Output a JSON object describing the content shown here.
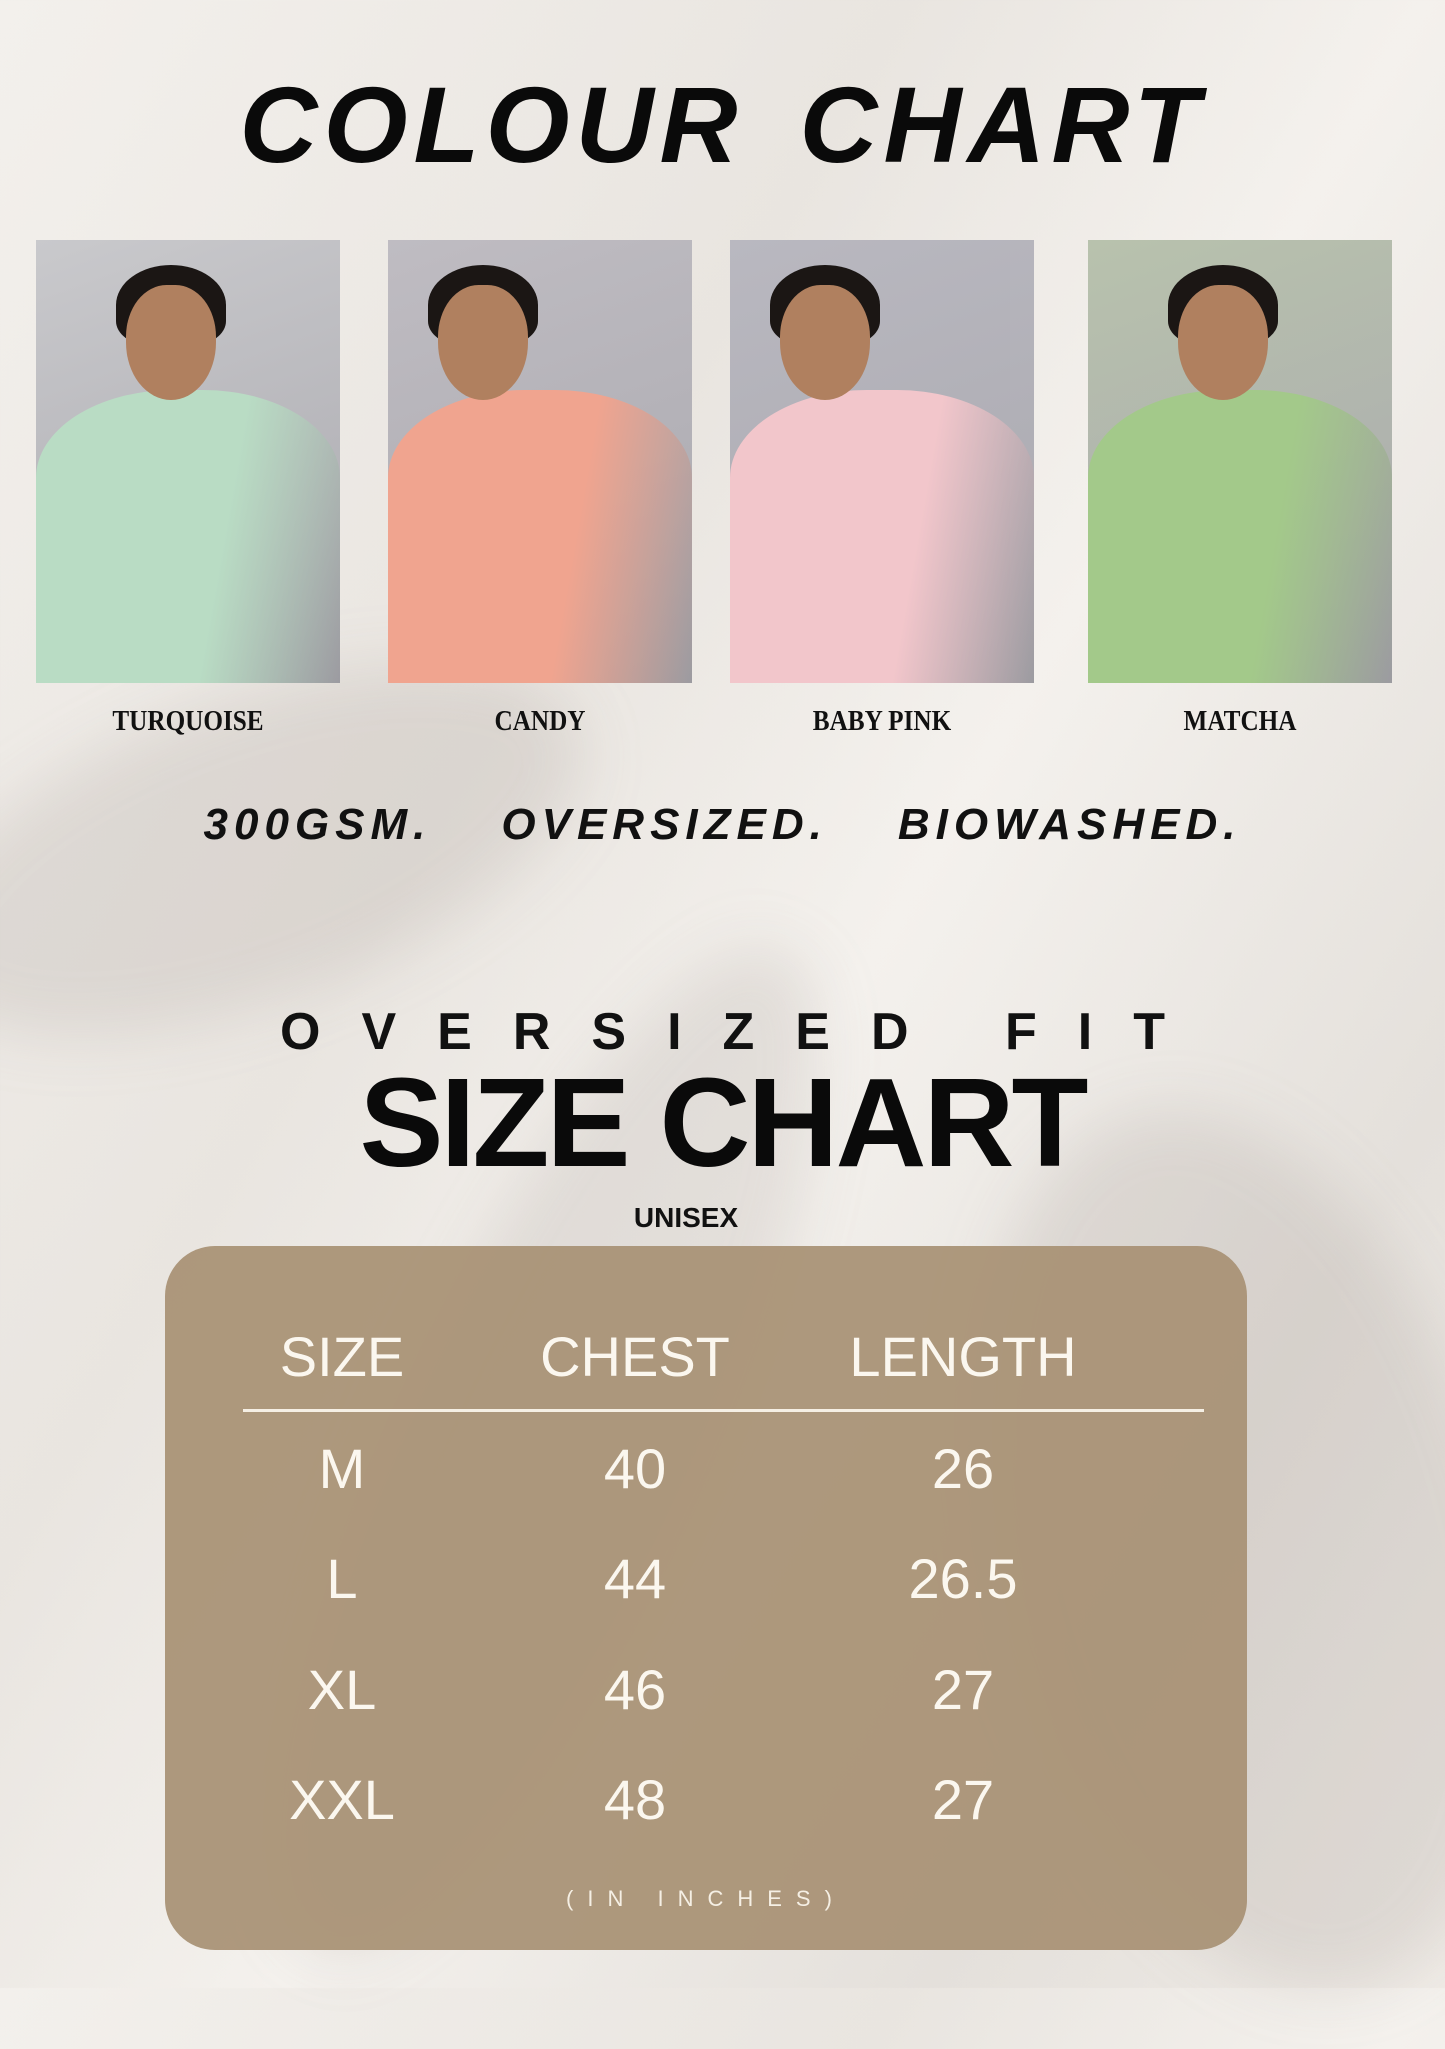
{
  "colour_chart": {
    "title": "COLOUR CHART",
    "colours": [
      {
        "name": "TURQUOISE",
        "swatch": "#b9dcc4",
        "backdrop": "#c9c9cc"
      },
      {
        "name": "CANDY",
        "swatch": "#f0a48f",
        "backdrop": "#bfbcc2"
      },
      {
        "name": "BABY PINK",
        "swatch": "#f2c6cb",
        "backdrop": "#b9b8c0"
      },
      {
        "name": "MATCHA",
        "swatch": "#a3c98a",
        "backdrop": "#b8c2ad"
      }
    ]
  },
  "features": [
    "300GSM.",
    "OVERSIZED.",
    "BIOWASHED."
  ],
  "size_chart": {
    "kicker": "OVERSIZED FIT",
    "title": "SIZE CHART",
    "subtitle": "UNISEX",
    "columns": [
      "SIZE",
      "CHEST",
      "LENGTH"
    ],
    "rows": [
      [
        "M",
        "40",
        "26"
      ],
      [
        "L",
        "44",
        "26.5"
      ],
      [
        "XL",
        "46",
        "27"
      ],
      [
        "XXL",
        "48",
        "27"
      ]
    ],
    "unit_note": "(IN INCHES)",
    "panel_color": "#a8916f"
  }
}
